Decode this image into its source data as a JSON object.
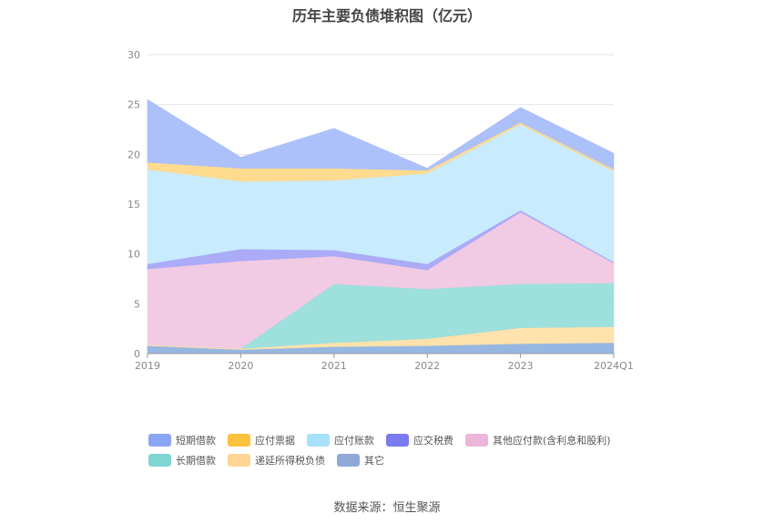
{
  "chart_data": {
    "type": "area",
    "stacked": true,
    "title": "历年主要负债堆积图（亿元）",
    "categories": [
      "2019",
      "2020",
      "2021",
      "2022",
      "2023",
      "2024Q1"
    ],
    "ylim": [
      0,
      30
    ],
    "yticks": [
      "0",
      "5",
      "10",
      "15",
      "20",
      "25",
      "30"
    ],
    "grid": true,
    "legend_position": "bottom",
    "series": [
      {
        "name": "其它",
        "color": "#8fb3e0",
        "values": [
          0.8,
          0.4,
          0.7,
          0.8,
          1.0,
          1.1
        ]
      },
      {
        "name": "递延所得税负债",
        "color": "#ffe0a8",
        "values": [
          0.1,
          0.1,
          0.4,
          0.7,
          1.6,
          1.6
        ]
      },
      {
        "name": "长期借款",
        "color": "#98dedc",
        "values": [
          0.0,
          0.0,
          5.9,
          5.0,
          4.4,
          4.4
        ]
      },
      {
        "name": "其他应付款(含利息和股利)",
        "color": "#f0c8e2",
        "values": [
          7.6,
          8.8,
          2.8,
          1.9,
          7.2,
          2.0
        ]
      },
      {
        "name": "应交税费",
        "color": "#a7a7f7",
        "values": [
          0.5,
          1.2,
          0.6,
          0.6,
          0.2,
          0.1
        ]
      },
      {
        "name": "应付账款",
        "color": "#c5eafd",
        "values": [
          9.5,
          6.8,
          7.0,
          9.1,
          8.6,
          9.1
        ]
      },
      {
        "name": "应付票据",
        "color": "#ffd98a",
        "values": [
          0.7,
          1.3,
          1.2,
          0.3,
          0.2,
          0.2
        ]
      },
      {
        "name": "短期借款",
        "color": "#a8bdfa",
        "values": [
          6.3,
          1.1,
          4.0,
          0.2,
          1.5,
          1.6
        ]
      }
    ]
  },
  "legend": {
    "row1": [
      {
        "label": "短期借款",
        "color": "#8aa5f3"
      },
      {
        "label": "应付票据",
        "color": "#fcc23d"
      },
      {
        "label": "应付账款",
        "color": "#a8e1fb"
      },
      {
        "label": "应交税费",
        "color": "#7b7bf0"
      },
      {
        "label": "其他应付款(含利息和股利)",
        "color": "#ecb6da"
      }
    ],
    "row2": [
      {
        "label": "长期借款",
        "color": "#80d6d2"
      },
      {
        "label": "递延所得税负债",
        "color": "#ffd694"
      },
      {
        "label": "其它",
        "color": "#8fa8d8"
      }
    ]
  },
  "source": "数据来源：恒生聚源"
}
